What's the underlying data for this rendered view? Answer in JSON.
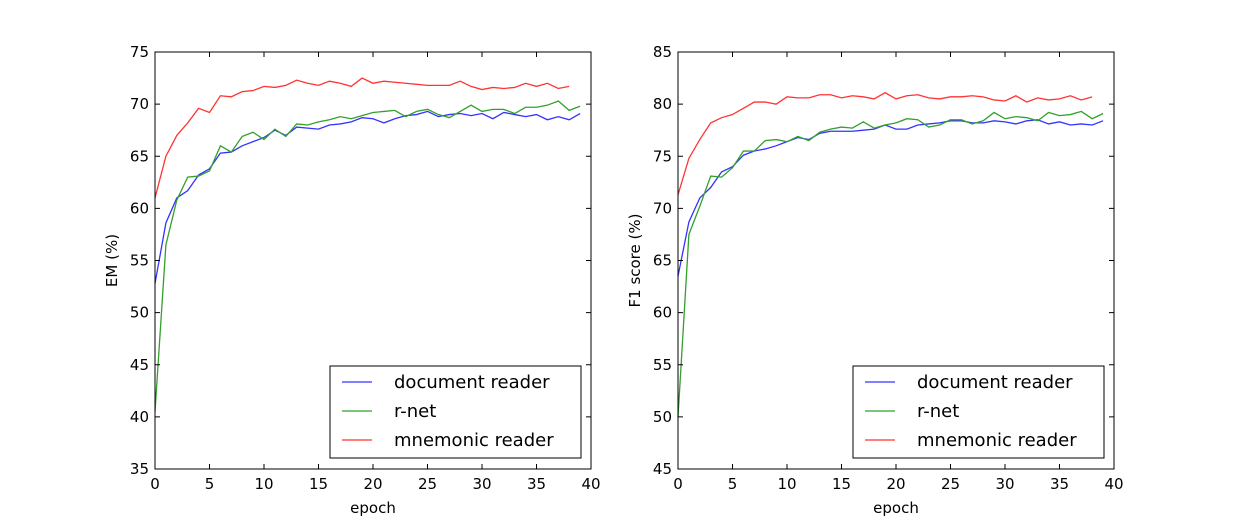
{
  "chart_data": [
    {
      "type": "line",
      "xlabel": "epoch",
      "ylabel": "EM (%)",
      "xlim": [
        0,
        40
      ],
      "ylim": [
        35,
        75
      ],
      "xticks": [
        0,
        5,
        10,
        15,
        20,
        25,
        30,
        35,
        40
      ],
      "yticks": [
        35,
        40,
        45,
        50,
        55,
        60,
        65,
        70,
        75
      ],
      "legend_position": "lower-right",
      "series": [
        {
          "name": "document reader",
          "color": "#3333ff",
          "x": [
            0,
            1,
            2,
            3,
            4,
            5,
            6,
            7,
            8,
            9,
            10,
            11,
            12,
            13,
            14,
            15,
            16,
            17,
            18,
            19,
            20,
            21,
            22,
            23,
            24,
            25,
            26,
            27,
            28,
            29,
            30,
            31,
            32,
            33,
            34,
            35,
            36,
            37,
            38,
            39
          ],
          "values": [
            52.8,
            58.6,
            61.0,
            61.7,
            63.2,
            63.8,
            65.3,
            65.4,
            66.0,
            66.4,
            66.8,
            67.5,
            67.0,
            67.8,
            67.7,
            67.6,
            68.0,
            68.1,
            68.3,
            68.7,
            68.6,
            68.2,
            68.6,
            68.9,
            69.0,
            69.3,
            68.8,
            69.0,
            69.1,
            68.9,
            69.1,
            68.6,
            69.2,
            69.0,
            68.8,
            69.0,
            68.5,
            68.8,
            68.5,
            69.1
          ]
        },
        {
          "name": "r-net",
          "color": "#33a02c",
          "x": [
            0,
            1,
            2,
            3,
            4,
            5,
            6,
            7,
            8,
            9,
            10,
            11,
            12,
            13,
            14,
            15,
            16,
            17,
            18,
            19,
            20,
            21,
            22,
            23,
            24,
            25,
            26,
            27,
            28,
            29,
            30,
            31,
            32,
            33,
            34,
            35,
            36,
            37,
            38,
            39
          ],
          "values": [
            40.5,
            56.5,
            60.8,
            63.0,
            63.1,
            63.6,
            66.0,
            65.4,
            66.9,
            67.3,
            66.6,
            67.6,
            66.9,
            68.1,
            68.0,
            68.3,
            68.5,
            68.8,
            68.6,
            68.9,
            69.2,
            69.3,
            69.4,
            68.8,
            69.3,
            69.5,
            69.0,
            68.7,
            69.3,
            69.9,
            69.3,
            69.5,
            69.5,
            69.1,
            69.7,
            69.7,
            69.9,
            70.3,
            69.4,
            69.8
          ]
        },
        {
          "name": "mnemonic reader",
          "color": "#ff3333",
          "x": [
            0,
            1,
            2,
            3,
            4,
            5,
            6,
            7,
            8,
            9,
            10,
            11,
            12,
            13,
            14,
            15,
            16,
            17,
            18,
            19,
            20,
            21,
            22,
            23,
            24,
            25,
            26,
            27,
            28,
            29,
            30,
            31,
            32,
            33,
            34,
            35,
            36,
            37,
            38
          ],
          "values": [
            61.0,
            65.0,
            67.0,
            68.2,
            69.6,
            69.2,
            70.8,
            70.7,
            71.2,
            71.3,
            71.7,
            71.6,
            71.8,
            72.3,
            72.0,
            71.8,
            72.2,
            72.0,
            71.7,
            72.5,
            72.0,
            72.2,
            72.1,
            72.0,
            71.9,
            71.8,
            71.8,
            71.8,
            72.2,
            71.7,
            71.4,
            71.6,
            71.5,
            71.6,
            72.0,
            71.7,
            72.0,
            71.5,
            71.7
          ]
        }
      ]
    },
    {
      "type": "line",
      "xlabel": "epoch",
      "ylabel": "F1 score (%)",
      "xlim": [
        0,
        40
      ],
      "ylim": [
        45,
        85
      ],
      "xticks": [
        0,
        5,
        10,
        15,
        20,
        25,
        30,
        35,
        40
      ],
      "yticks": [
        45,
        50,
        55,
        60,
        65,
        70,
        75,
        80,
        85
      ],
      "legend_position": "lower-right",
      "series": [
        {
          "name": "document reader",
          "color": "#3333ff",
          "x": [
            0,
            1,
            2,
            3,
            4,
            5,
            6,
            7,
            8,
            9,
            10,
            11,
            12,
            13,
            14,
            15,
            16,
            17,
            18,
            19,
            20,
            21,
            22,
            23,
            24,
            25,
            26,
            27,
            28,
            29,
            30,
            31,
            32,
            33,
            34,
            35,
            36,
            37,
            38,
            39
          ],
          "values": [
            63.5,
            68.7,
            71.0,
            72.0,
            73.5,
            74.0,
            75.1,
            75.5,
            75.7,
            76.0,
            76.4,
            76.8,
            76.6,
            77.2,
            77.4,
            77.4,
            77.4,
            77.5,
            77.6,
            78.0,
            77.6,
            77.6,
            78.0,
            78.1,
            78.2,
            78.4,
            78.4,
            78.2,
            78.2,
            78.4,
            78.3,
            78.1,
            78.4,
            78.5,
            78.1,
            78.3,
            78.0,
            78.1,
            78.0,
            78.4
          ]
        },
        {
          "name": "r-net",
          "color": "#33a02c",
          "x": [
            0,
            1,
            2,
            3,
            4,
            5,
            6,
            7,
            8,
            9,
            10,
            11,
            12,
            13,
            14,
            15,
            16,
            17,
            18,
            19,
            20,
            21,
            22,
            23,
            24,
            25,
            26,
            27,
            28,
            29,
            30,
            31,
            32,
            33,
            34,
            35,
            36,
            37,
            38,
            39
          ],
          "values": [
            50.0,
            67.5,
            70.2,
            73.1,
            73.0,
            73.9,
            75.5,
            75.5,
            76.5,
            76.6,
            76.4,
            76.9,
            76.5,
            77.3,
            77.6,
            77.8,
            77.7,
            78.3,
            77.7,
            78.0,
            78.2,
            78.6,
            78.5,
            77.8,
            78.0,
            78.5,
            78.5,
            78.1,
            78.4,
            79.2,
            78.6,
            78.8,
            78.7,
            78.4,
            79.2,
            78.9,
            79.0,
            79.3,
            78.6,
            79.1
          ]
        },
        {
          "name": "mnemonic reader",
          "color": "#ff3333",
          "x": [
            0,
            1,
            2,
            3,
            4,
            5,
            6,
            7,
            8,
            9,
            10,
            11,
            12,
            13,
            14,
            15,
            16,
            17,
            18,
            19,
            20,
            21,
            22,
            23,
            24,
            25,
            26,
            27,
            28,
            29,
            30,
            31,
            32,
            33,
            34,
            35,
            36,
            37,
            38
          ],
          "values": [
            71.3,
            74.8,
            76.6,
            78.2,
            78.7,
            79.0,
            79.6,
            80.2,
            80.2,
            80.0,
            80.7,
            80.6,
            80.6,
            80.9,
            80.9,
            80.6,
            80.8,
            80.7,
            80.5,
            81.1,
            80.5,
            80.8,
            80.9,
            80.6,
            80.5,
            80.7,
            80.7,
            80.8,
            80.7,
            80.4,
            80.3,
            80.8,
            80.2,
            80.6,
            80.4,
            80.5,
            80.8,
            80.4,
            80.7
          ]
        }
      ]
    }
  ]
}
